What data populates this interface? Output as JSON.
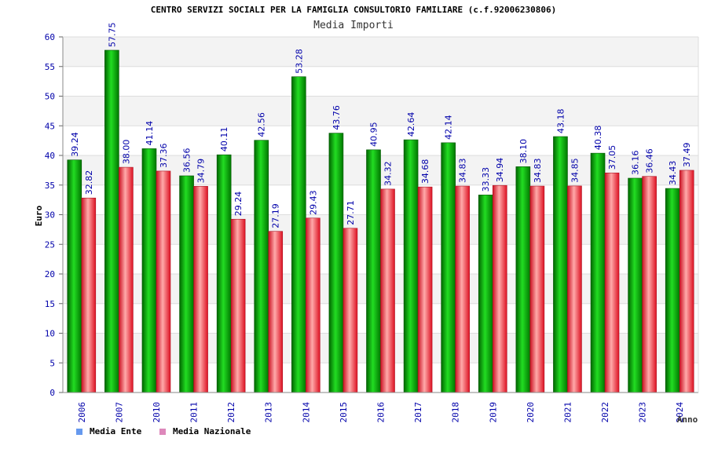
{
  "colors": {
    "ente": "#00aa00",
    "nazionale": "#ee2233",
    "ente_legend": "#6699ee",
    "naz_legend": "#dd88bb"
  },
  "chart_data": {
    "type": "bar",
    "title": "CENTRO SERVIZI SOCIALI PER LA FAMIGLIA CONSULTORIO FAMILIARE (c.f.92006230806)",
    "subtitle": "Media Importi",
    "ylabel": "Euro",
    "xlabel": "Anno",
    "ylim": [
      0,
      60
    ],
    "yticks": [
      "0",
      "5",
      "10",
      "15",
      "20",
      "25",
      "30",
      "35",
      "40",
      "45",
      "50",
      "55",
      "60"
    ],
    "categories": [
      "2006",
      "2007",
      "2010",
      "2011",
      "2012",
      "2013",
      "2014",
      "2015",
      "2016",
      "2017",
      "2018",
      "2019",
      "2020",
      "2021",
      "2022",
      "2023",
      "2024"
    ],
    "series": [
      {
        "name": "Media Ente",
        "values": [
          39.24,
          57.75,
          41.14,
          36.56,
          40.11,
          42.56,
          53.28,
          43.76,
          40.95,
          42.64,
          42.14,
          33.33,
          38.1,
          43.18,
          40.38,
          36.16,
          34.43
        ],
        "labels": [
          "39.24",
          "57.75",
          "41.14",
          "36.56",
          "40.11",
          "42.56",
          "53.28",
          "43.76",
          "40.95",
          "42.64",
          "42.14",
          "33.33",
          "38.10",
          "43.18",
          "40.38",
          "36.16",
          "34.43"
        ]
      },
      {
        "name": "Media Nazionale",
        "values": [
          32.82,
          38.0,
          37.36,
          34.79,
          29.24,
          27.19,
          29.43,
          27.71,
          34.32,
          34.68,
          34.83,
          34.94,
          34.83,
          34.85,
          37.05,
          36.46,
          37.49
        ],
        "labels": [
          "32.82",
          "38.00",
          "37.36",
          "34.79",
          "29.24",
          "27.19",
          "29.43",
          "27.71",
          "34.32",
          "34.68",
          "34.83",
          "34.94",
          "34.83",
          "34.85",
          "37.05",
          "36.46",
          "37.49"
        ]
      }
    ],
    "grid": true,
    "legend_position": "bottom-left"
  }
}
